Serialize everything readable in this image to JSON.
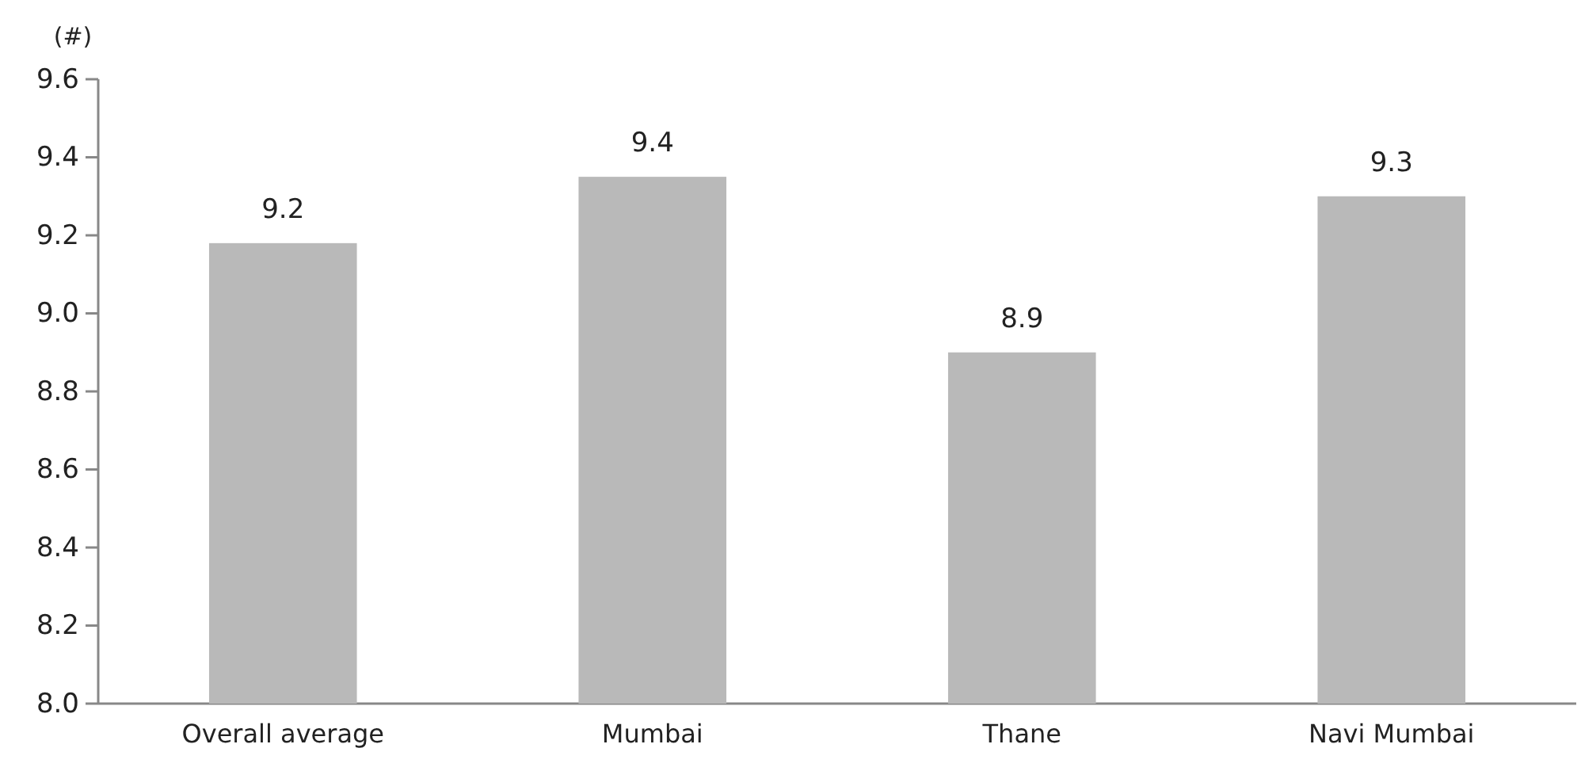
{
  "chart_data": {
    "type": "bar",
    "ylabel": "(#)",
    "categories": [
      "Overall average",
      "Mumbai",
      "Thane",
      "Navi Mumbai"
    ],
    "values": [
      9.18,
      9.35,
      8.9,
      9.3
    ],
    "value_labels": [
      "9.2",
      "9.4",
      "8.9",
      "9.3"
    ],
    "color": "#b9b9b9",
    "ylim": [
      8.0,
      9.6
    ],
    "yticks": [
      {
        "value": 8.0,
        "label": "8.0"
      },
      8.2,
      8.4,
      8.6,
      8.8,
      {
        "value": 9.0,
        "label": "9.0"
      },
      9.2,
      9.4,
      9.6
    ]
  }
}
